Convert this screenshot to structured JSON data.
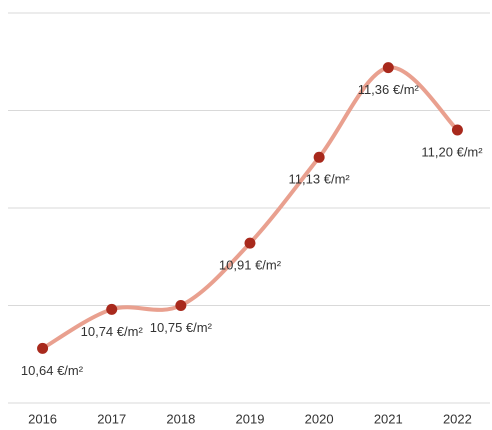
{
  "chart_data": {
    "type": "line",
    "categories": [
      "2016",
      "2017",
      "2018",
      "2019",
      "2020",
      "2021",
      "2022"
    ],
    "series": [
      {
        "color": "#e9a08f",
        "marker_color": "#a8291c",
        "values": [
          10.64,
          10.74,
          10.75,
          10.91,
          11.13,
          11.36,
          11.2
        ],
        "value_labels": [
          "10,64 €/m²",
          "10,74 €/m²",
          "10,75 €/m²",
          "10,91 €/m²",
          "11,13 €/m²",
          "11,36 €/m²",
          "11,20 €/m²"
        ]
      }
    ],
    "ylim": [
      10.5,
      11.5
    ],
    "yticks": [
      10.5,
      10.75,
      11.0,
      11.25,
      11.5
    ],
    "grid": true,
    "smooth": true
  }
}
